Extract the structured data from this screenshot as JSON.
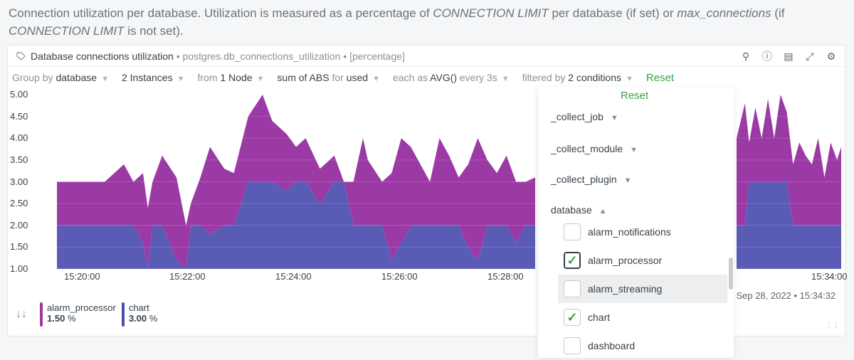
{
  "description": {
    "p1": "Connection utilization per database. Utilization is measured as a percentage of ",
    "em1": "CONNECTION LIMIT",
    "p2": " per database (if set) or ",
    "em2": "max_connections",
    "p3": " (if ",
    "em3": "CONNECTION LIMIT",
    "p4": " is not set)."
  },
  "card": {
    "title": "Database connections utilization",
    "context": "• postgres.db_connections_utilization • [percentage]",
    "icons": [
      "zoom-icon",
      "info-icon",
      "layers-icon",
      "fullscreen-icon",
      "settings-icon"
    ]
  },
  "filters": {
    "group_by_label": "Group by",
    "group_by_value": "database",
    "instances": "2 Instances",
    "from_label": "from",
    "from_value": "1 Node",
    "sum_label": "sum of ABS",
    "for_label": "for",
    "for_value": "used",
    "each_label": "each as",
    "each_value": "AVG()",
    "every_label": "every 3s",
    "filtered_label": "filtered by",
    "filtered_value": "2 conditions",
    "reset": "Reset"
  },
  "dropdown": {
    "reset": "Reset",
    "groups": [
      {
        "label": "_collect_job",
        "state": "collapsed"
      },
      {
        "label": "_collect_module",
        "state": "collapsed"
      },
      {
        "label": "_collect_plugin",
        "state": "collapsed"
      },
      {
        "label": "database",
        "state": "expanded"
      }
    ],
    "options": [
      {
        "label": "alarm_notifications",
        "checked": false
      },
      {
        "label": "alarm_processor",
        "checked": true
      },
      {
        "label": "alarm_streaming",
        "checked": false
      },
      {
        "label": "chart",
        "checked": true
      },
      {
        "label": "dashboard",
        "checked": false
      }
    ]
  },
  "legend": {
    "items": [
      {
        "name": "alarm_processor",
        "value": "1.50",
        "unit": "%",
        "color": "#9b3aa5"
      },
      {
        "name": "chart",
        "value": "3.00",
        "unit": "%",
        "color": "#4a4dab"
      }
    ]
  },
  "timestamp": "d, Sep 28, 2022 • 15:34:32",
  "chart_data": {
    "type": "area",
    "stacked": true,
    "y_ticks": [
      "5.00",
      "4.50",
      "4.00",
      "3.50",
      "3.00",
      "2.50",
      "2.00",
      "1.50",
      "1.00"
    ],
    "ylim": [
      1,
      5
    ],
    "x_ticks": [
      "15:20:00",
      "15:22:00",
      "15:24:00",
      "15:26:00",
      "15:28:00",
      "15:34:00"
    ],
    "series": [
      {
        "name": "chart",
        "color": "#5a5bb5"
      },
      {
        "name": "alarm_processor",
        "color": "#9b3aa5"
      }
    ],
    "left_panel": {
      "x": [
        0,
        0.06,
        0.08,
        0.1,
        0.14,
        0.16,
        0.18,
        0.19,
        0.2,
        0.22,
        0.25,
        0.27,
        0.28,
        0.3,
        0.32,
        0.35,
        0.37,
        0.4,
        0.43,
        0.45,
        0.48,
        0.5,
        0.52,
        0.55,
        0.58,
        0.6,
        0.62,
        0.64,
        0.65,
        0.68,
        0.7,
        0.72,
        0.74,
        0.76,
        0.78,
        0.8,
        0.82,
        0.84,
        0.86,
        0.88,
        0.9,
        0.92,
        0.94,
        0.96,
        0.98,
        1.0
      ],
      "chart_values": [
        2,
        2,
        2,
        2,
        2,
        2,
        1.6,
        1,
        2,
        2,
        1.2,
        1,
        2,
        2,
        1.8,
        2,
        2,
        3,
        3,
        3,
        2.8,
        3,
        3,
        2.5,
        3,
        3,
        2,
        2,
        2,
        2,
        1.2,
        1.6,
        2,
        2,
        2,
        2,
        2,
        2,
        1.5,
        1.2,
        2,
        2,
        2,
        1.6,
        2,
        2
      ],
      "total_values": [
        3,
        3,
        3,
        3,
        3.4,
        3,
        3.2,
        2.4,
        3,
        3.6,
        3.1,
        2,
        2.5,
        3.1,
        3.8,
        3.3,
        3.2,
        4.5,
        5,
        4.4,
        4.1,
        3.8,
        4,
        3.3,
        3.6,
        3,
        3,
        4,
        3.5,
        3,
        3.2,
        4,
        3.8,
        3.4,
        3,
        4,
        3.6,
        3.1,
        3.4,
        4,
        3.5,
        3.2,
        3.6,
        3,
        3,
        3.1
      ]
    },
    "right_panel": {
      "x": [
        0,
        0.08,
        0.12,
        0.18,
        0.24,
        0.3,
        0.36,
        0.42,
        0.48,
        0.54,
        0.6,
        0.66,
        0.72,
        0.78,
        0.84,
        0.9,
        0.96,
        1.0
      ],
      "chart_values": [
        2,
        2,
        3,
        3,
        3,
        3,
        3,
        3,
        3,
        2,
        2,
        2,
        2,
        2,
        2,
        2,
        2,
        2
      ],
      "total_values": [
        4,
        4.8,
        3.9,
        4.7,
        4,
        4.9,
        4,
        5,
        4.6,
        3.4,
        3.9,
        3.6,
        3.4,
        4,
        3.1,
        3.9,
        3.5,
        3.8
      ]
    }
  }
}
